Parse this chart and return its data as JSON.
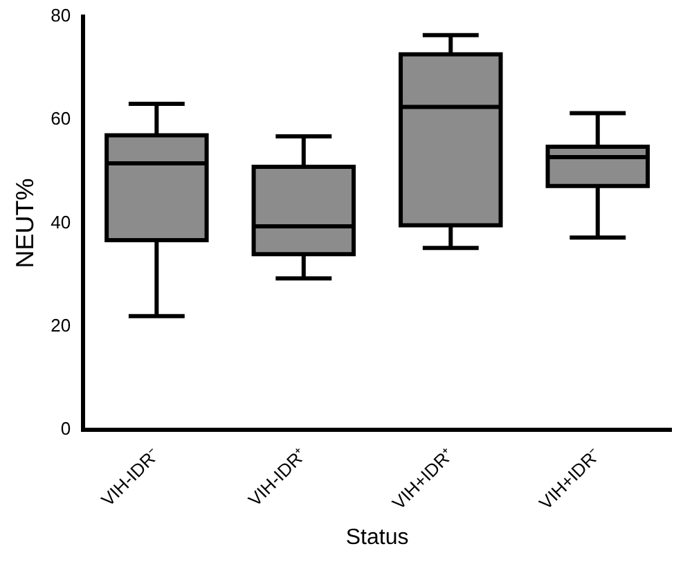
{
  "chart_data": {
    "type": "box",
    "xlabel": "Status",
    "ylabel": "NEUT%",
    "categories": [
      "VIH-IDR⁻",
      "VIH-IDR⁺",
      "VIH+IDR⁺",
      "VIH+IDR⁻"
    ],
    "color": "#8c8c8c",
    "ylim": [
      0,
      80
    ],
    "yticks": [
      0,
      20,
      40,
      60,
      80
    ],
    "grid": false,
    "legend": false,
    "boxes": [
      {
        "low": 22,
        "q1": 36.7,
        "median": 51.6,
        "q3": 57,
        "high": 63.1
      },
      {
        "low": 29.3,
        "q1": 34,
        "median": 39.4,
        "q3": 50.9,
        "high": 56.8
      },
      {
        "low": 35.2,
        "q1": 39.6,
        "median": 62.5,
        "q3": 72.7,
        "high": 76.4
      },
      {
        "low": 37.2,
        "q1": 47.2,
        "median": 52.8,
        "q3": 54.8,
        "high": 61.3
      }
    ]
  }
}
